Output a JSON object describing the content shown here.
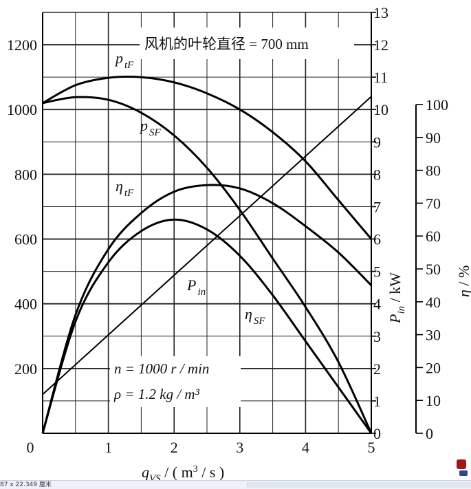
{
  "chart_data": {
    "type": "line",
    "title": "风机的叶轮直径 = 700 mm",
    "xlabel": "q_VS / ( m³ / s )",
    "x_ticks": [
      "0",
      "1",
      "2",
      "3",
      "4",
      "5"
    ],
    "xlim": [
      0,
      5
    ],
    "left_axis": {
      "ticks": [
        "200",
        "400",
        "600",
        "800",
        "1000",
        "1200"
      ],
      "range": [
        0,
        1300
      ],
      "grid_ticks": [
        200,
        400,
        600,
        800,
        1000,
        1200
      ]
    },
    "middle_axis": {
      "label": "P_in / kW",
      "ticks": [
        "0",
        "1",
        "2",
        "3",
        "4",
        "5",
        "6",
        "7",
        "8",
        "9",
        "10",
        "11",
        "12",
        "13"
      ],
      "range": [
        0,
        13
      ]
    },
    "right_axis": {
      "label": "η / %",
      "ticks": [
        "0",
        "10",
        "20",
        "30",
        "40",
        "50",
        "60",
        "70",
        "80",
        "90",
        "100"
      ],
      "range": [
        0,
        100
      ]
    },
    "series": [
      {
        "name": "p_tF",
        "label_main": "p",
        "label_sub": "tF",
        "axis": "left",
        "x": [
          0,
          0.5,
          1.0,
          1.5,
          2.0,
          2.5,
          3.0,
          3.5,
          4.0,
          4.5,
          5.0
        ],
        "y": [
          1020,
          1075,
          1098,
          1100,
          1084,
          1050,
          1000,
          930,
          840,
          720,
          600
        ]
      },
      {
        "name": "p_SF",
        "label_main": "p",
        "label_sub": "SF",
        "axis": "left",
        "x": [
          0,
          0.5,
          1.0,
          1.5,
          2.0,
          2.5,
          3.0,
          3.5,
          4.0,
          4.5,
          5.0
        ],
        "y": [
          1020,
          1038,
          1030,
          990,
          920,
          820,
          690,
          540,
          390,
          220,
          0
        ]
      },
      {
        "name": "η_tF",
        "label_main": "η",
        "label_sub": "tF",
        "axis": "right",
        "x": [
          0,
          0.5,
          1.0,
          1.5,
          2.0,
          2.5,
          3.0,
          3.5,
          4.0,
          4.5,
          5.0
        ],
        "y": [
          0,
          36,
          56,
          67,
          73.5,
          75.5,
          74.5,
          70,
          63,
          55,
          45
        ]
      },
      {
        "name": "η_SF",
        "label_main": "η",
        "label_sub": "SF",
        "axis": "right",
        "x": [
          0,
          0.5,
          1.0,
          1.5,
          2.0,
          2.5,
          3.0,
          3.5,
          4.0,
          4.5,
          5.0
        ],
        "y": [
          0,
          34,
          52,
          61.5,
          65,
          62,
          54,
          42,
          28,
          14,
          0
        ]
      },
      {
        "name": "P_in",
        "label_main": "P",
        "label_sub": "in",
        "axis": "middle",
        "x": [
          0,
          5.0
        ],
        "y": [
          1.2,
          10.4
        ]
      }
    ],
    "annotations": [
      "n = 1000 r / min",
      "ρ = 1.2 kg / m³"
    ],
    "grid": true
  },
  "statusbar": {
    "dimensions": "87 x 22.349 厘米"
  }
}
